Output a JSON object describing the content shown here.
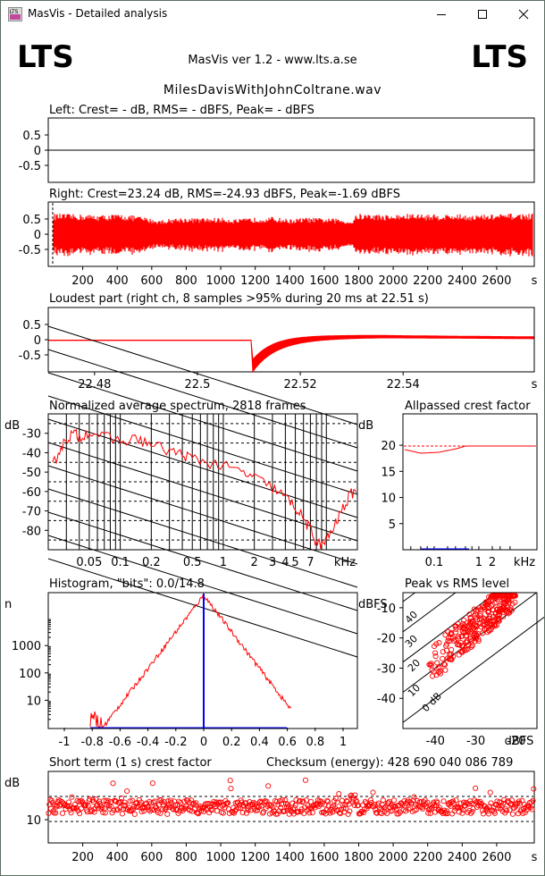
{
  "window": {
    "title": "MasVis - Detailed analysis",
    "icon": "lts-app-icon"
  },
  "titlebar_buttons": [
    "minimize-icon",
    "maximize-icon",
    "close-icon"
  ],
  "header": {
    "logo_left": "LTS",
    "logo_right": "LTS",
    "version": "MasVis ver 1.2 - www.lts.a.se",
    "filename": "MilesDavisWithJohnColtrane.wav"
  },
  "accent_color": "#ff0000",
  "marker_color": "#0000ff",
  "chart_data": [
    {
      "id": "left-channel",
      "type": "line",
      "title": "Left: Crest= - dB, RMS= - dBFS, Peak= - dBFS",
      "ylim": [
        -1,
        1
      ],
      "y_ticks": [
        "0.5",
        "0",
        "-0.5"
      ],
      "series": [
        {
          "values": [
            0,
            0
          ]
        }
      ]
    },
    {
      "id": "right-channel",
      "type": "line",
      "title": "Right: Crest=23.24 dB, RMS=-24.93 dBFS, Peak=-1.69 dBFS",
      "ylim": [
        -1,
        1
      ],
      "y_ticks": [
        "0.5",
        "0",
        "-0.5"
      ],
      "x_ticks": [
        "200",
        "400",
        "600",
        "800",
        "1000",
        "1200",
        "1400",
        "1600",
        "1800",
        "2000",
        "2200",
        "2400",
        "2600",
        "s"
      ],
      "xlim": [
        0,
        2818
      ],
      "envelope": {
        "x": [
          20,
          150,
          300,
          420,
          520,
          640,
          760,
          880,
          1000,
          1100,
          1200,
          1300,
          1400,
          1500,
          1600,
          1700,
          1760,
          1790,
          1900,
          2000,
          2100,
          2200,
          2300,
          2400,
          2500,
          2600,
          2700,
          2800
        ],
        "amp": [
          0.62,
          0.6,
          0.58,
          0.6,
          0.55,
          0.42,
          0.5,
          0.48,
          0.5,
          0.45,
          0.5,
          0.52,
          0.45,
          0.5,
          0.48,
          0.46,
          0.4,
          0.62,
          0.6,
          0.58,
          0.62,
          0.6,
          0.6,
          0.6,
          0.58,
          0.6,
          0.62,
          0.62
        ]
      }
    },
    {
      "id": "loudest-part",
      "type": "line",
      "title": "Loudest part (right ch, 8 samples >95% during 20 ms at 22.51 s)",
      "ylim": [
        -1,
        1
      ],
      "y_ticks": [
        "0.5",
        "0",
        "-0.5"
      ],
      "x_ticks": [
        "22.48",
        "22.5",
        "22.52",
        "22.54",
        "s"
      ]
    },
    {
      "id": "average-spectrum",
      "type": "line",
      "title": "Normalized average spectrum, 2818 frames",
      "ylabel": "dB",
      "y_ticks": [
        "-30",
        "-40",
        "-50",
        "-60",
        "-70",
        "-80"
      ],
      "x_ticks": [
        "0.05",
        "0.1",
        "0.2",
        "0.5",
        "1",
        "2",
        "3",
        "4",
        "5",
        "7",
        "kHz"
      ]
    },
    {
      "id": "allpassed-crest",
      "type": "line",
      "title": "Allpassed crest factor",
      "ylabel": "dB",
      "y_ticks": [
        "20",
        "15",
        "10",
        "5"
      ],
      "x_ticks": [
        "0.1",
        "1",
        "2",
        "kHz"
      ]
    },
    {
      "id": "histogram",
      "type": "line",
      "title": "Histogram, \"bits\": 0.0/14.8",
      "ylabel": "n",
      "y_ticks": [
        "1000",
        "100",
        "10"
      ],
      "x_ticks": [
        "-1",
        "-0.8",
        "-0.6",
        "-0.4",
        "-0.2",
        "0",
        "0.2",
        "0.4",
        "0.6",
        "0.8",
        "1"
      ]
    },
    {
      "id": "peak-vs-rms",
      "type": "scatter",
      "title": "Peak vs RMS level",
      "ylabel": "dBFS",
      "y_ticks": [
        "-10",
        "-20",
        "-30",
        "-40"
      ],
      "x_ticks": [
        "-40",
        "-30",
        "-20",
        "dBFS"
      ],
      "diag_labels": [
        "40",
        "30",
        "20",
        "10",
        "0 dB"
      ]
    },
    {
      "id": "short-term-crest",
      "type": "scatter",
      "title": "Short term (1 s) crest factor",
      "checksum": "Checksum (energy):   428 690 040 086 789",
      "ylabel": "dB",
      "y_ticks": [
        "10"
      ],
      "x_ticks": [
        "200",
        "400",
        "600",
        "800",
        "1000",
        "1200",
        "1400",
        "1600",
        "1800",
        "2000",
        "2200",
        "2400",
        "2600",
        "s"
      ]
    }
  ]
}
